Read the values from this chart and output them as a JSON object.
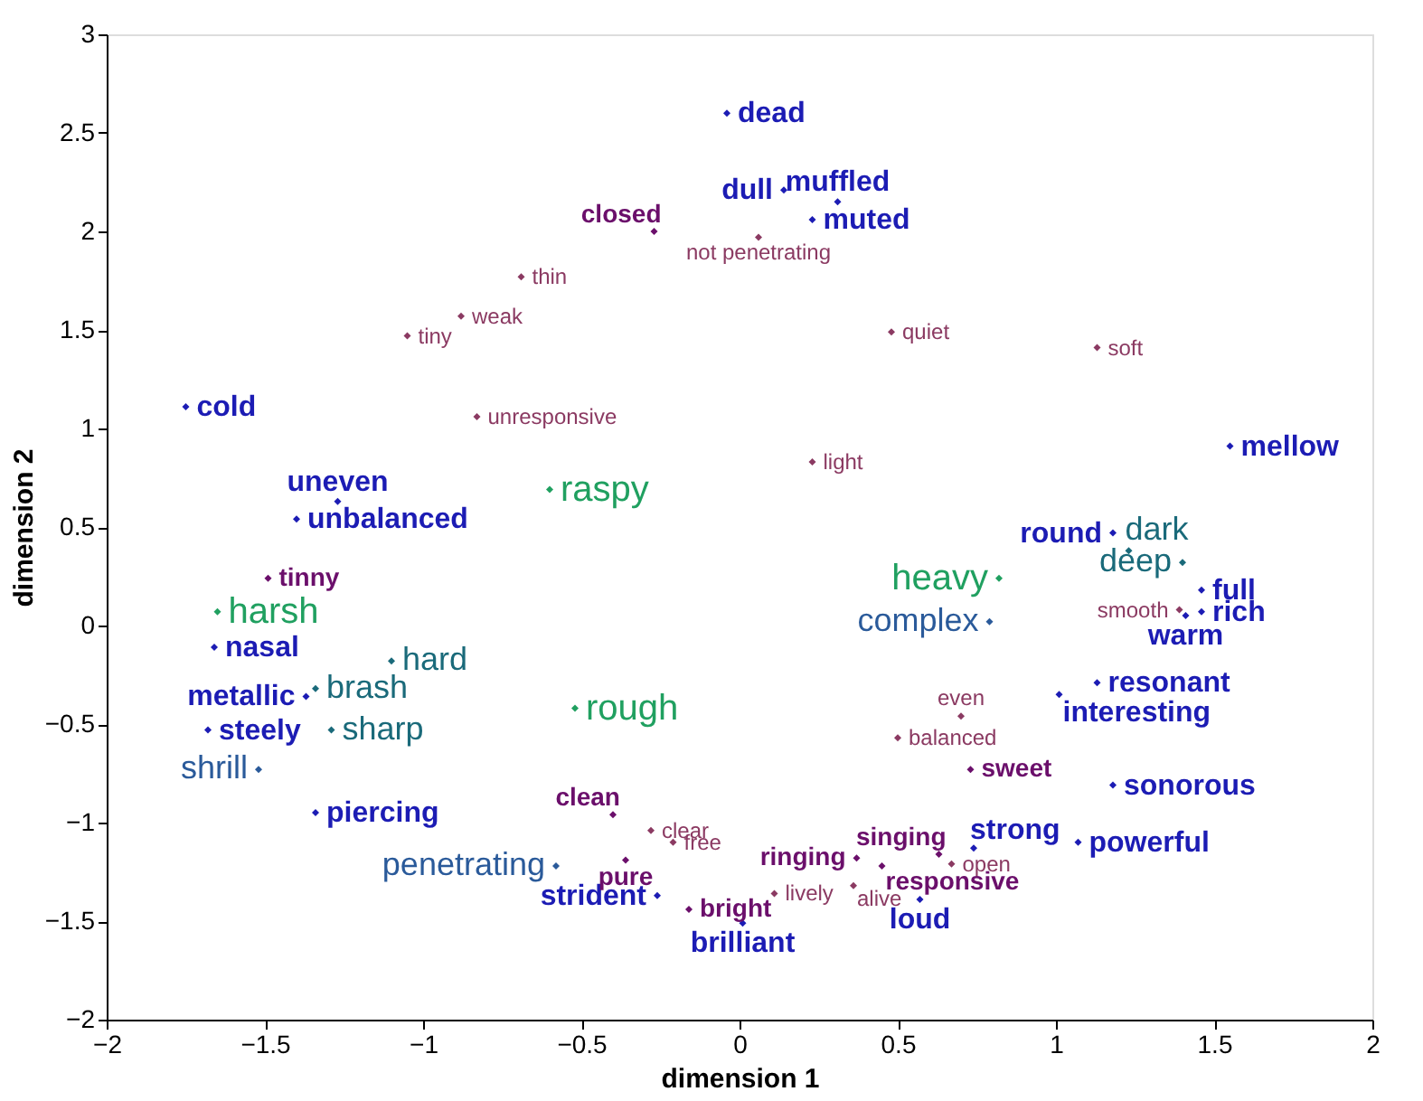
{
  "chart_data": {
    "type": "scatter",
    "xlabel": "dimension 1",
    "ylabel": "dimension 2",
    "xlim": [
      -2,
      2
    ],
    "ylim": [
      -2,
      3
    ],
    "xticks": [
      -2,
      -1.5,
      -1,
      -0.5,
      0,
      0.5,
      1,
      1.5,
      2
    ],
    "yticks": [
      -2,
      -1.5,
      -1,
      -0.5,
      0,
      0.5,
      1,
      1.5,
      2,
      2.5,
      3
    ],
    "grid": false,
    "marker": "diamond",
    "series": [
      {
        "color": "#1c1cb4",
        "x": [
          -0.04,
          0.14,
          0.31,
          0.23,
          -1.75,
          -1.27,
          -1.4,
          1.55,
          1.18,
          1.46,
          1.46,
          1.41,
          1.13,
          1.01,
          1.18,
          1.07,
          0.74,
          0.57,
          -1.66,
          -1.37,
          -1.68,
          -1.34,
          -0.26,
          0.01
        ],
        "values": [
          2.6,
          2.21,
          2.15,
          2.06,
          1.11,
          0.63,
          0.54,
          0.91,
          0.47,
          0.18,
          0.07,
          0.05,
          -0.29,
          -0.35,
          -0.81,
          -1.1,
          -1.13,
          -1.39,
          -0.11,
          -0.36,
          -0.53,
          -0.95,
          -1.37,
          -1.51
        ],
        "value_labels": [
          "dead",
          "dull",
          "muffled",
          "muted",
          "cold",
          "uneven",
          "unbalanced",
          "mellow",
          "round",
          "full",
          "rich",
          "warm",
          "resonant",
          "interesting",
          "sonorous",
          "powerful",
          "strong",
          "loud",
          "nasal",
          "metallic",
          "steely",
          "piercing",
          "strident",
          "brilliant"
        ]
      },
      {
        "color": "#6b0f6b",
        "x": [
          -0.27,
          -1.49,
          -0.4,
          -0.36,
          -0.16,
          0.37,
          0.63,
          0.45,
          0.73
        ],
        "values": [
          2.0,
          0.24,
          -0.96,
          -1.19,
          -1.44,
          -1.18,
          -1.16,
          -1.22,
          -0.73
        ],
        "value_labels": [
          "closed",
          "tinny",
          "clean",
          "pure",
          "bright",
          "ringing",
          "singing",
          "responsive",
          "sweet"
        ]
      },
      {
        "color": "#8b3a62",
        "x": [
          -0.69,
          -0.88,
          -1.05,
          -0.83,
          0.06,
          0.48,
          1.13,
          0.23,
          1.39,
          0.7,
          0.5,
          -0.28,
          -0.21,
          0.11,
          0.36,
          0.67
        ],
        "values": [
          1.77,
          1.57,
          1.47,
          1.06,
          1.97,
          1.49,
          1.41,
          0.83,
          0.08,
          -0.46,
          -0.57,
          -1.04,
          -1.1,
          -1.36,
          -1.32,
          -1.21
        ],
        "value_labels": [
          "thin",
          "weak",
          "tiny",
          "unresponsive",
          "not penetrating",
          "quiet",
          "soft",
          "light",
          "smooth",
          "even",
          "balanced",
          "clear",
          "free",
          "lively",
          "alive",
          "open"
        ]
      },
      {
        "color": "#20a060",
        "x": [
          -0.6,
          0.82,
          -1.65,
          -0.52
        ],
        "values": [
          0.69,
          0.24,
          0.07,
          -0.42
        ],
        "value_labels": [
          "raspy",
          "heavy",
          "harsh",
          "rough"
        ]
      },
      {
        "color": "#1a6a7a",
        "x": [
          -1.1,
          -1.34,
          -1.29,
          1.23,
          1.4
        ],
        "values": [
          -0.18,
          -0.32,
          -0.53,
          0.38,
          0.32
        ],
        "value_labels": [
          "hard",
          "brash",
          "sharp",
          "dark",
          "deep"
        ]
      },
      {
        "color": "#2a5a9a",
        "x": [
          -1.52,
          -0.58,
          0.79
        ],
        "values": [
          -0.73,
          -1.22,
          0.02
        ],
        "value_labels": [
          "shrill",
          "penetrating",
          "complex"
        ]
      }
    ]
  }
}
